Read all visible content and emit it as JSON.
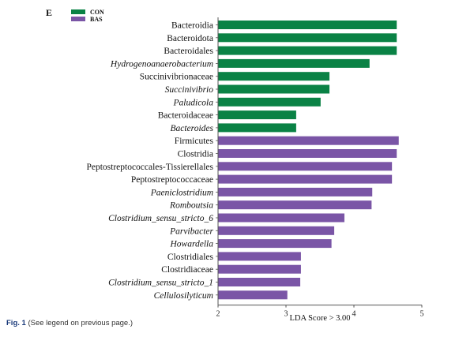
{
  "panel_label": "E",
  "caption": {
    "fig": "Fig. 1",
    "text": "(See legend on previous page.)"
  },
  "chart_data": {
    "type": "bar",
    "orientation": "horizontal",
    "xlabel": "LDA Score > 3.00",
    "xlim": [
      2,
      5
    ],
    "xticks": [
      "2",
      "3",
      "4",
      "5"
    ],
    "legend": [
      {
        "name": "CON",
        "color": "#0a8245"
      },
      {
        "name": "BAS",
        "color": "#7a55a6"
      }
    ],
    "legend_placement": "top-left",
    "bars": [
      {
        "label": "Bacteroidia",
        "value": 4.63,
        "group": "CON",
        "italic": false
      },
      {
        "label": "Bacteroidota",
        "value": 4.63,
        "group": "CON",
        "italic": false
      },
      {
        "label": "Bacteroidales",
        "value": 4.63,
        "group": "CON",
        "italic": false
      },
      {
        "label": "Hydrogenoanaerobacterium",
        "value": 4.23,
        "group": "CON",
        "italic": true
      },
      {
        "label": "Succinivibrionaceae",
        "value": 3.64,
        "group": "CON",
        "italic": false
      },
      {
        "label": "Succinivibrio",
        "value": 3.64,
        "group": "CON",
        "italic": true
      },
      {
        "label": "Paludicola",
        "value": 3.51,
        "group": "CON",
        "italic": true
      },
      {
        "label": "Bacteroidaceae",
        "value": 3.15,
        "group": "CON",
        "italic": false
      },
      {
        "label": "Bacteroides",
        "value": 3.15,
        "group": "CON",
        "italic": true
      },
      {
        "label": "Firmicutes",
        "value": 4.66,
        "group": "BAS",
        "italic": false
      },
      {
        "label": "Clostridia",
        "value": 4.63,
        "group": "BAS",
        "italic": false
      },
      {
        "label": "Peptostreptococcales-Tissierellales",
        "value": 4.56,
        "group": "BAS",
        "italic": false
      },
      {
        "label": "Peptostreptococcaceae",
        "value": 4.56,
        "group": "BAS",
        "italic": false
      },
      {
        "label": "Paeniclostridium",
        "value": 4.27,
        "group": "BAS",
        "italic": true
      },
      {
        "label": "Romboutsia",
        "value": 4.26,
        "group": "BAS",
        "italic": true
      },
      {
        "label": "Clostridium_sensu_stricto_6",
        "value": 3.86,
        "group": "BAS",
        "italic": true
      },
      {
        "label": "Parvibacter",
        "value": 3.71,
        "group": "BAS",
        "italic": true
      },
      {
        "label": "Howardella",
        "value": 3.67,
        "group": "BAS",
        "italic": true
      },
      {
        "label": "Clostridiales",
        "value": 3.22,
        "group": "BAS",
        "italic": false
      },
      {
        "label": "Clostridiaceae",
        "value": 3.22,
        "group": "BAS",
        "italic": false
      },
      {
        "label": "Clostridium_sensu_stricto_1",
        "value": 3.21,
        "group": "BAS",
        "italic": true
      },
      {
        "label": "Cellulosilyticum",
        "value": 3.02,
        "group": "BAS",
        "italic": true
      }
    ]
  }
}
